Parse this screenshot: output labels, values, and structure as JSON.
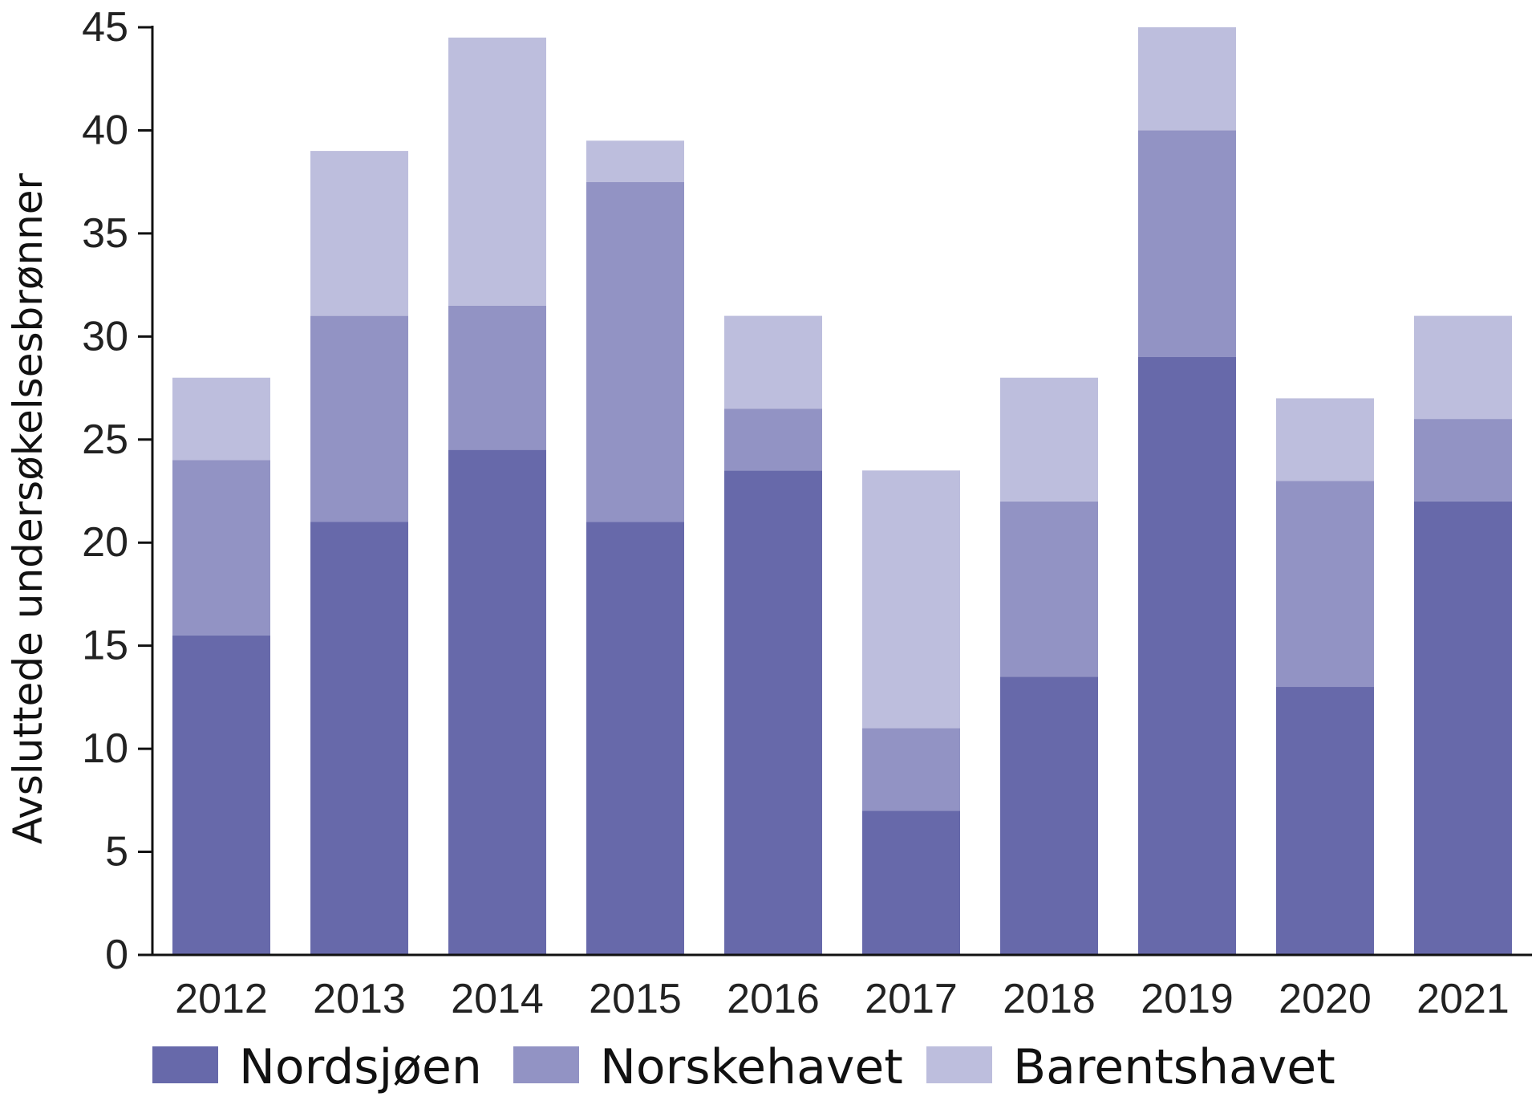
{
  "chart_data": {
    "type": "bar",
    "stacked": true,
    "categories": [
      "2012",
      "2013",
      "2014",
      "2015",
      "2016",
      "2017",
      "2018",
      "2019",
      "2020",
      "2021"
    ],
    "series": [
      {
        "name": "Nordsjøen",
        "color": "#6769aa",
        "values": [
          15.5,
          21,
          24.5,
          21,
          23.5,
          7,
          13.5,
          29,
          13,
          22
        ]
      },
      {
        "name": "Norskehavet",
        "color": "#9293c4",
        "values": [
          8.5,
          10,
          7,
          16.5,
          3,
          4,
          8.5,
          11,
          10,
          4
        ]
      },
      {
        "name": "Barentshavet",
        "color": "#bdbedd",
        "values": [
          4,
          8,
          13,
          2,
          4.5,
          12.5,
          6,
          5,
          4,
          5
        ]
      }
    ],
    "ylabel": "Avsluttede undersøkelsesbrønner",
    "xlabel": "",
    "title": "",
    "ylim": [
      0,
      45
    ],
    "yticks": [
      0,
      5,
      10,
      15,
      20,
      25,
      30,
      35,
      40,
      45
    ],
    "grid": false,
    "legend_position": "bottom"
  }
}
